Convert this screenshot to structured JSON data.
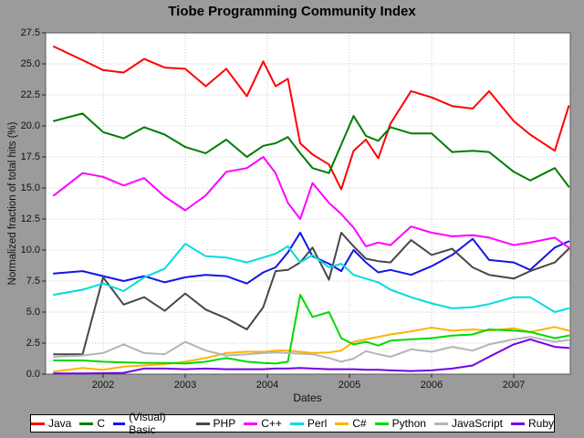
{
  "window": {
    "background": "#9b9b9b"
  },
  "header": {
    "title": "Tiobe Programming Community Index"
  },
  "axes": {
    "x_title": "Dates",
    "y_title": "Normalized fraction of total hits (%)",
    "y_tick_labels": [
      "0.0",
      "2.5",
      "5.0",
      "7.5",
      "10.0",
      "12.5",
      "15.0",
      "17.5",
      "20.0",
      "22.5",
      "25.0",
      "27.5"
    ],
    "x_tick_labels": [
      "2002",
      "2003",
      "2004",
      "2005",
      "2006",
      "2007"
    ]
  },
  "legend": {
    "items": [
      {
        "label": "Java",
        "color": "#ff0000"
      },
      {
        "label": "C",
        "color": "#007d00"
      },
      {
        "label": "(Visual) Basic",
        "color": "#1414e8"
      },
      {
        "label": "PHP",
        "color": "#474747"
      },
      {
        "label": "C++",
        "color": "#ff00ff"
      },
      {
        "label": "Perl",
        "color": "#00dcdc"
      },
      {
        "label": "C#",
        "color": "#ffb300"
      },
      {
        "label": "Python",
        "color": "#00d900"
      },
      {
        "label": "JavaScript",
        "color": "#b5b5b5"
      },
      {
        "label": "Ruby",
        "color": "#7300e6"
      }
    ]
  },
  "chart_data": {
    "type": "line",
    "title": "Tiobe Programming Community Index",
    "xlabel": "Dates",
    "ylabel": "Normalized fraction of total hits (%)",
    "xlim": [
      2001.3,
      2007.69
    ],
    "ylim": [
      0,
      27.5
    ],
    "x_tick_values": [
      2002,
      2003,
      2004,
      2005,
      2006,
      2007
    ],
    "y_tick_values": [
      0,
      2.5,
      5.0,
      7.5,
      10.0,
      12.5,
      15.0,
      17.5,
      20.0,
      22.5,
      25.0,
      27.5
    ],
    "grid": "dotted",
    "grid_color": "#c9c9c9",
    "plot_background": "#ffffff",
    "legend_position": "bottom",
    "x": [
      2001.4,
      2001.75,
      2002.0,
      2002.25,
      2002.5,
      2002.75,
      2003.0,
      2003.25,
      2003.5,
      2003.75,
      2003.95,
      2004.1,
      2004.25,
      2004.4,
      2004.55,
      2004.75,
      2004.9,
      2005.05,
      2005.2,
      2005.35,
      2005.5,
      2005.75,
      2006.0,
      2006.25,
      2006.5,
      2006.7,
      2007.0,
      2007.2,
      2007.5,
      2007.67
    ],
    "series": [
      {
        "name": "Java",
        "color": "#ff0000",
        "values": [
          26.4,
          25.3,
          24.5,
          24.3,
          25.4,
          24.7,
          24.6,
          23.2,
          24.6,
          22.4,
          25.2,
          23.2,
          23.8,
          18.6,
          17.7,
          16.9,
          14.9,
          18.0,
          18.9,
          17.4,
          20.2,
          22.8,
          22.3,
          21.6,
          21.4,
          22.8,
          20.4,
          19.3,
          18.0,
          21.6
        ]
      },
      {
        "name": "C",
        "color": "#007d00",
        "values": [
          20.4,
          21.0,
          19.5,
          19.0,
          19.9,
          19.3,
          18.3,
          17.8,
          18.9,
          17.5,
          18.4,
          18.6,
          19.1,
          17.8,
          16.6,
          16.2,
          18.5,
          20.8,
          19.2,
          18.8,
          19.9,
          19.4,
          19.4,
          17.9,
          18.0,
          17.9,
          16.3,
          15.6,
          16.6,
          15.1
        ]
      },
      {
        "name": "(Visual) Basic",
        "color": "#1414e8",
        "values": [
          8.1,
          8.3,
          7.9,
          7.5,
          7.9,
          7.4,
          7.8,
          8.0,
          7.9,
          7.3,
          8.2,
          8.6,
          9.8,
          11.4,
          9.5,
          8.9,
          8.3,
          10.0,
          9.0,
          8.2,
          8.4,
          8.0,
          8.7,
          9.6,
          10.9,
          9.2,
          9.0,
          8.4,
          10.2,
          10.7
        ]
      },
      {
        "name": "PHP",
        "color": "#474747",
        "values": [
          1.6,
          1.6,
          7.8,
          5.6,
          6.2,
          5.1,
          6.5,
          5.2,
          4.5,
          3.6,
          5.4,
          8.3,
          8.4,
          9.0,
          10.2,
          7.6,
          11.4,
          10.3,
          9.3,
          9.1,
          9.0,
          10.8,
          9.6,
          10.1,
          8.6,
          8.0,
          7.7,
          8.3,
          9.0,
          10.1
        ]
      },
      {
        "name": "C++",
        "color": "#ff00ff",
        "values": [
          14.4,
          16.2,
          15.9,
          15.2,
          15.8,
          14.3,
          13.2,
          14.4,
          16.3,
          16.6,
          17.5,
          16.2,
          13.8,
          12.5,
          15.4,
          13.8,
          12.9,
          11.8,
          10.3,
          10.6,
          10.4,
          11.9,
          11.4,
          11.1,
          11.2,
          11.0,
          10.4,
          10.6,
          11.0,
          10.2
        ]
      },
      {
        "name": "Perl",
        "color": "#00dcdc",
        "values": [
          6.4,
          6.8,
          7.3,
          6.7,
          7.8,
          8.5,
          10.5,
          9.5,
          9.4,
          9.0,
          9.4,
          9.7,
          10.3,
          9.0,
          9.6,
          8.6,
          8.9,
          8.0,
          7.7,
          7.4,
          6.8,
          6.2,
          5.7,
          5.3,
          5.4,
          5.65,
          6.2,
          6.2,
          5.0,
          5.3
        ]
      },
      {
        "name": "C#",
        "color": "#ffb300",
        "values": [
          0.2,
          0.5,
          0.35,
          0.6,
          0.7,
          0.8,
          1.0,
          1.3,
          1.7,
          1.8,
          1.8,
          1.9,
          1.9,
          1.8,
          1.7,
          1.75,
          1.9,
          2.6,
          2.8,
          3.0,
          3.2,
          3.45,
          3.75,
          3.5,
          3.6,
          3.5,
          3.7,
          3.4,
          3.8,
          3.5
        ]
      },
      {
        "name": "Python",
        "color": "#00d900",
        "values": [
          1.1,
          1.1,
          1.0,
          0.95,
          0.9,
          0.9,
          0.85,
          1.0,
          1.3,
          1.0,
          0.9,
          0.85,
          1.0,
          6.4,
          4.6,
          5.0,
          2.9,
          2.4,
          2.6,
          2.3,
          2.7,
          2.8,
          2.9,
          3.1,
          3.2,
          3.6,
          3.5,
          3.4,
          2.9,
          3.1
        ]
      },
      {
        "name": "JavaScript",
        "color": "#b5b5b5",
        "values": [
          1.4,
          1.5,
          1.7,
          2.4,
          1.7,
          1.6,
          2.6,
          1.9,
          1.5,
          1.6,
          1.7,
          1.75,
          1.7,
          1.65,
          1.6,
          1.3,
          1.0,
          1.25,
          1.85,
          1.6,
          1.4,
          2.0,
          1.8,
          2.2,
          1.9,
          2.4,
          2.8,
          3.0,
          2.6,
          2.75
        ]
      },
      {
        "name": "Ruby",
        "color": "#7300e6",
        "values": [
          0.05,
          0.05,
          0.07,
          0.1,
          0.45,
          0.45,
          0.4,
          0.45,
          0.4,
          0.4,
          0.4,
          0.45,
          0.45,
          0.5,
          0.45,
          0.4,
          0.4,
          0.4,
          0.35,
          0.35,
          0.3,
          0.25,
          0.3,
          0.45,
          0.7,
          1.4,
          2.4,
          2.8,
          2.2,
          2.1
        ]
      }
    ]
  }
}
